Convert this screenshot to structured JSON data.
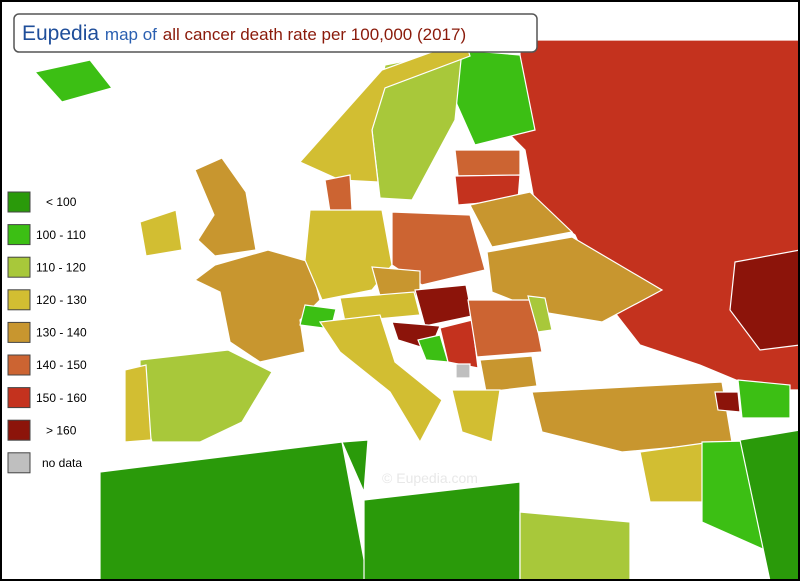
{
  "header": {
    "brand": "Eupedia",
    "title_prefix": "map of",
    "title": "all cancer death rate per 100,000 (2017)"
  },
  "legend": [
    {
      "label": "< 100",
      "color": "#2a9a0a"
    },
    {
      "label": "100 - 110",
      "color": "#3cbf14"
    },
    {
      "label": "110 - 120",
      "color": "#a8c83a"
    },
    {
      "label": "120 - 130",
      "color": "#d2be32"
    },
    {
      "label": "130 - 140",
      "color": "#c8962f"
    },
    {
      "label": "140 - 150",
      "color": "#cc6432"
    },
    {
      "label": "150 - 160",
      "color": "#c4321e"
    },
    {
      "label": "> 160",
      "color": "#8c140a"
    },
    {
      "label": "no data",
      "color": "#bfbfbf"
    }
  ],
  "watermark": "© Eupedia.com"
}
